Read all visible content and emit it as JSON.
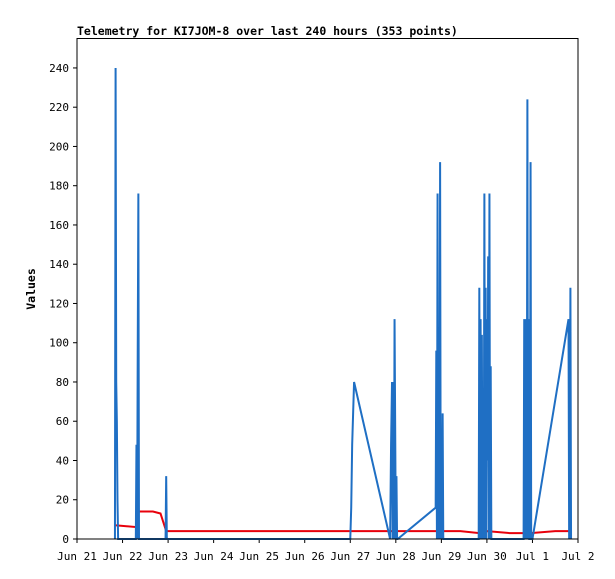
{
  "chart_data": {
    "type": "line",
    "title": "Telemetry for KI7JOM-8 over last 240 hours (353 points)",
    "xlabel": "",
    "ylabel": "Values",
    "x_ticks": [
      "Jun 21",
      "Jun 22",
      "Jun 23",
      "Jun 24",
      "Jun 25",
      "Jun 26",
      "Jun 27",
      "Jun 28",
      "Jun 29",
      "Jun 30",
      "Jul 1",
      "Jul 2"
    ],
    "xlim": [
      "2021-06-21T00:00",
      "2021-07-02T00:00"
    ],
    "y_ticks": [
      0,
      20,
      40,
      60,
      80,
      100,
      120,
      140,
      160,
      180,
      200,
      220,
      240
    ],
    "ylim": [
      0,
      255
    ],
    "grid": false,
    "colors": {
      "series_a": "#1f6fc4",
      "series_b": "#e8000b",
      "axis": "#000000"
    },
    "series": [
      {
        "color": "#1f6fc4",
        "points": [
          [
            "2021-06-21T20:00",
            0
          ],
          [
            "2021-06-21T20:20",
            240
          ],
          [
            "2021-06-21T20:40",
            80
          ],
          [
            "2021-06-21T21:00",
            60
          ],
          [
            "2021-06-21T21:20",
            20
          ],
          [
            "2021-06-21T21:40",
            0
          ],
          [
            "2021-06-22T07:00",
            0
          ],
          [
            "2021-06-22T07:20",
            48
          ],
          [
            "2021-06-22T07:40",
            0
          ],
          [
            "2021-06-22T08:00",
            96
          ],
          [
            "2021-06-22T08:20",
            176
          ],
          [
            "2021-06-22T08:40",
            0
          ],
          [
            "2021-06-22T08:45",
            0
          ],
          [
            "2021-06-22T22:40",
            0
          ],
          [
            "2021-06-22T23:00",
            32
          ],
          [
            "2021-06-22T23:20",
            0
          ],
          [
            "2021-06-27T00:00",
            0
          ],
          [
            "2021-06-27T00:30",
            16
          ],
          [
            "2021-06-27T01:00",
            48
          ],
          [
            "2021-06-27T02:00",
            80
          ],
          [
            "2021-06-27T21:00",
            0
          ],
          [
            "2021-06-27T21:30",
            48
          ],
          [
            "2021-06-27T22:00",
            80
          ],
          [
            "2021-06-27T22:20",
            0
          ],
          [
            "2021-06-27T22:40",
            80
          ],
          [
            "2021-06-27T23:00",
            0
          ],
          [
            "2021-06-27T23:20",
            112
          ],
          [
            "2021-06-27T23:40",
            56
          ],
          [
            "2021-06-28T00:00",
            0
          ],
          [
            "2021-06-28T00:20",
            32
          ],
          [
            "2021-06-28T00:40",
            0
          ],
          [
            "2021-06-28T01:00",
            0
          ],
          [
            "2021-06-28T21:00",
            16
          ],
          [
            "2021-06-28T21:20",
            96
          ],
          [
            "2021-06-28T21:40",
            0
          ],
          [
            "2021-06-28T22:00",
            176
          ],
          [
            "2021-06-28T22:20",
            0
          ],
          [
            "2021-06-28T22:40",
            88
          ],
          [
            "2021-06-28T23:00",
            0
          ],
          [
            "2021-06-28T23:20",
            192
          ],
          [
            "2021-06-28T23:40",
            0
          ],
          [
            "2021-06-29T00:00",
            48
          ],
          [
            "2021-06-29T00:20",
            0
          ],
          [
            "2021-06-29T00:40",
            64
          ],
          [
            "2021-06-29T01:00",
            0
          ],
          [
            "2021-06-29T01:20",
            0
          ],
          [
            "2021-06-29T19:40",
            0
          ],
          [
            "2021-06-29T20:00",
            128
          ],
          [
            "2021-06-29T20:20",
            0
          ],
          [
            "2021-06-29T20:40",
            112
          ],
          [
            "2021-06-29T21:00",
            0
          ],
          [
            "2021-06-29T21:20",
            104
          ],
          [
            "2021-06-29T21:40",
            0
          ],
          [
            "2021-06-29T22:00",
            32
          ],
          [
            "2021-06-29T22:20",
            0
          ],
          [
            "2021-06-29T22:40",
            176
          ],
          [
            "2021-06-29T23:00",
            0
          ],
          [
            "2021-06-29T23:20",
            128
          ],
          [
            "2021-06-29T23:40",
            0
          ],
          [
            "2021-06-30T00:00",
            112
          ],
          [
            "2021-06-30T00:20",
            40
          ],
          [
            "2021-06-30T00:40",
            144
          ],
          [
            "2021-06-30T01:00",
            0
          ],
          [
            "2021-06-30T01:20",
            176
          ],
          [
            "2021-06-30T01:40",
            0
          ],
          [
            "2021-06-30T02:00",
            88
          ],
          [
            "2021-06-30T02:20",
            0
          ],
          [
            "2021-06-30T02:40",
            0
          ],
          [
            "2021-06-30T19:20",
            0
          ],
          [
            "2021-06-30T19:40",
            112
          ],
          [
            "2021-06-30T20:00",
            0
          ],
          [
            "2021-06-30T20:20",
            56
          ],
          [
            "2021-06-30T20:40",
            112
          ],
          [
            "2021-06-30T21:00",
            0
          ],
          [
            "2021-06-30T21:20",
            224
          ],
          [
            "2021-06-30T21:40",
            0
          ],
          [
            "2021-06-30T22:00",
            112
          ],
          [
            "2021-06-30T22:20",
            0
          ],
          [
            "2021-06-30T22:40",
            0
          ],
          [
            "2021-06-30T23:00",
            192
          ],
          [
            "2021-06-30T23:20",
            0
          ],
          [
            "2021-07-01T00:00",
            0
          ],
          [
            "2021-07-01T19:00",
            112
          ],
          [
            "2021-07-01T19:20",
            0
          ],
          [
            "2021-07-01T19:40",
            24
          ],
          [
            "2021-07-01T20:00",
            128
          ],
          [
            "2021-07-01T20:20",
            0
          ]
        ]
      },
      {
        "color": "#e8000b",
        "points": [
          [
            "2021-06-21T20:00",
            7
          ],
          [
            "2021-06-22T08:00",
            6
          ],
          [
            "2021-06-22T08:30",
            14
          ],
          [
            "2021-06-22T16:00",
            14
          ],
          [
            "2021-06-22T20:00",
            13
          ],
          [
            "2021-06-22T23:00",
            4
          ],
          [
            "2021-06-25T00:00",
            4
          ],
          [
            "2021-06-28T00:00",
            4
          ],
          [
            "2021-06-29T00:00",
            4
          ],
          [
            "2021-06-29T10:00",
            4
          ],
          [
            "2021-06-29T20:00",
            3
          ],
          [
            "2021-06-30T00:00",
            4
          ],
          [
            "2021-06-30T12:00",
            3
          ],
          [
            "2021-06-30T23:00",
            3
          ],
          [
            "2021-07-01T12:00",
            4
          ],
          [
            "2021-07-01T20:00",
            4
          ]
        ]
      }
    ]
  }
}
